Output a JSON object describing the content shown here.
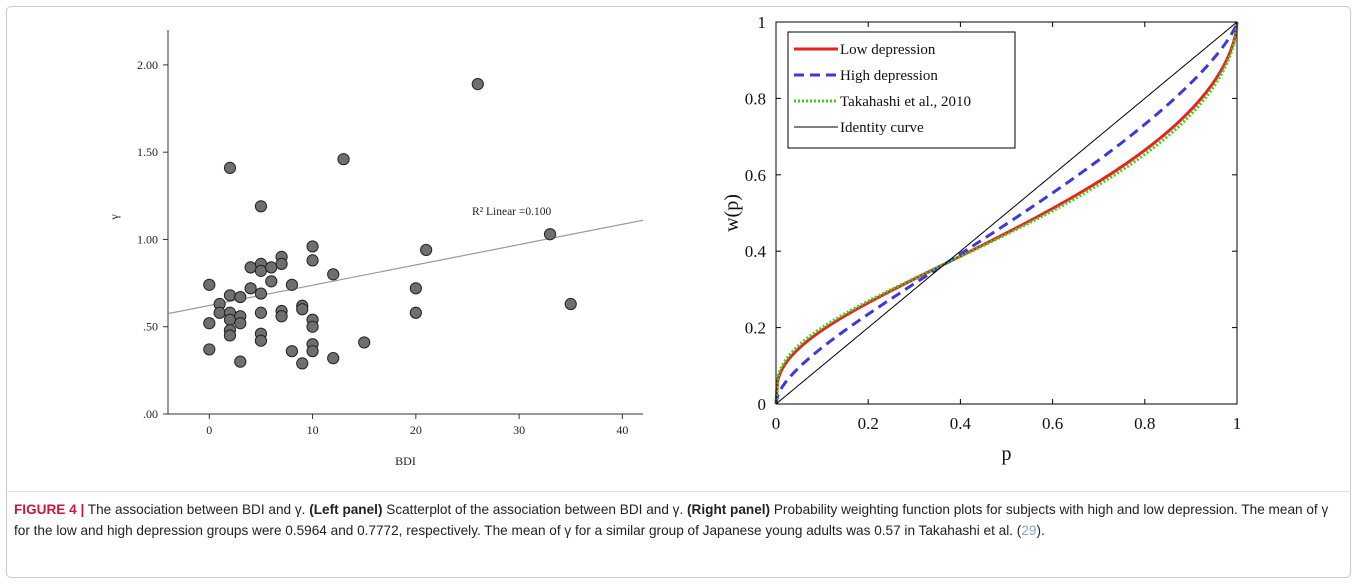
{
  "figure": {
    "label": "FIGURE 4 |",
    "caption_intro": " The association between BDI and γ. ",
    "left_panel_label": "(Left panel)",
    "left_panel_text": " Scatterplot of the association between BDI and γ. ",
    "right_panel_label": "(Right panel)",
    "right_panel_text": " Probability weighting function plots for subjects with high and low depression. The mean of γ for the low and high depression groups were 0.5964 and 0.7772, respectively. The mean of γ for a similar group of Japanese young adults was 0.57 in Takahashi et al. (",
    "ref_number": "29",
    "caption_end": ")."
  },
  "chart_data": [
    {
      "type": "scatter",
      "xlabel": "BDI",
      "ylabel": "γ",
      "xlim": [
        -4,
        42
      ],
      "ylim": [
        0,
        2.2
      ],
      "xticks": [
        0,
        10,
        20,
        30,
        40
      ],
      "xtick_labels": [
        "0",
        "10",
        "20",
        "30",
        "40"
      ],
      "yticks": [
        0,
        0.5,
        1.0,
        1.5,
        2.0
      ],
      "ytick_labels": [
        ".00",
        ".50",
        "1.00",
        "1.50",
        "2.00"
      ],
      "annotation": "R² Linear =0.100",
      "fit_line": {
        "x": [
          -4,
          42
        ],
        "y": [
          0.575,
          1.11
        ]
      },
      "points": [
        [
          0,
          0.74
        ],
        [
          0,
          0.52
        ],
        [
          0,
          0.37
        ],
        [
          1,
          0.63
        ],
        [
          1,
          0.58
        ],
        [
          2,
          1.41
        ],
        [
          2,
          0.68
        ],
        [
          2,
          0.58
        ],
        [
          2,
          0.54
        ],
        [
          2,
          0.48
        ],
        [
          2,
          0.45
        ],
        [
          3,
          0.67
        ],
        [
          3,
          0.56
        ],
        [
          3,
          0.52
        ],
        [
          3,
          0.3
        ],
        [
          4,
          0.84
        ],
        [
          4,
          0.72
        ],
        [
          5,
          1.19
        ],
        [
          5,
          0.86
        ],
        [
          5,
          0.82
        ],
        [
          5,
          0.69
        ],
        [
          5,
          0.58
        ],
        [
          5,
          0.46
        ],
        [
          5,
          0.42
        ],
        [
          6,
          0.84
        ],
        [
          6,
          0.76
        ],
        [
          7,
          0.9
        ],
        [
          7,
          0.86
        ],
        [
          7,
          0.59
        ],
        [
          7,
          0.56
        ],
        [
          8,
          0.74
        ],
        [
          8,
          0.36
        ],
        [
          9,
          0.62
        ],
        [
          9,
          0.6
        ],
        [
          9,
          0.29
        ],
        [
          10,
          0.96
        ],
        [
          10,
          0.88
        ],
        [
          10,
          0.54
        ],
        [
          10,
          0.5
        ],
        [
          10,
          0.4
        ],
        [
          10,
          0.36
        ],
        [
          12,
          0.8
        ],
        [
          12,
          0.32
        ],
        [
          13,
          1.46
        ],
        [
          15,
          0.41
        ],
        [
          20,
          0.72
        ],
        [
          20,
          0.58
        ],
        [
          21,
          0.94
        ],
        [
          26,
          1.89
        ],
        [
          33,
          1.03
        ],
        [
          35,
          0.63
        ]
      ]
    },
    {
      "type": "line",
      "xlabel": "p",
      "ylabel": "w(p)",
      "xlim": [
        0,
        1
      ],
      "ylim": [
        0,
        1
      ],
      "xticks": [
        0,
        0.2,
        0.4,
        0.6,
        0.8,
        1
      ],
      "xtick_labels": [
        "0",
        "0.2",
        "0.4",
        "0.6",
        "0.8",
        "1"
      ],
      "yticks": [
        0,
        0.2,
        0.4,
        0.6,
        0.8,
        1
      ],
      "ytick_labels": [
        "0",
        "0.2",
        "0.4",
        "0.6",
        "0.8",
        "1"
      ],
      "legend_position": "top-left",
      "series": [
        {
          "name": "Low depression",
          "gamma": 0.5964,
          "color": "#e8231d",
          "style": "solid"
        },
        {
          "name": "High depression",
          "gamma": 0.7772,
          "color": "#3a3ad8",
          "style": "dashed"
        },
        {
          "name": "Takahashi et al., 2010",
          "gamma": 0.57,
          "color": "#3fcf1f",
          "style": "dotted"
        },
        {
          "name": "Identity curve",
          "gamma": 1,
          "color": "#000000",
          "style": "solid-thin"
        }
      ]
    }
  ]
}
